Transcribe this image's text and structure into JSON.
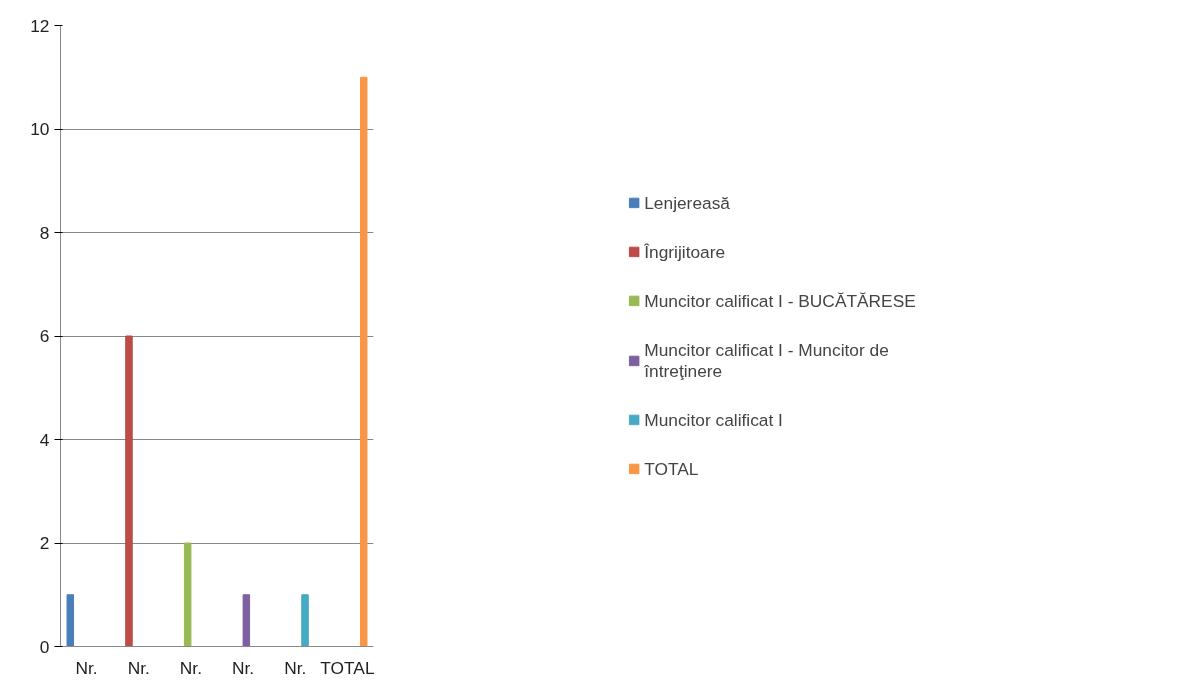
{
  "chart_data": {
    "type": "bar",
    "categories": [
      "Nr.",
      "Nr.",
      "Nr.",
      "Nr.",
      "Nr.",
      "TOTAL"
    ],
    "series": [
      {
        "name": "Lenjereasă",
        "color": "#4a7ebb",
        "values": [
          1,
          null,
          null,
          null,
          null,
          null
        ]
      },
      {
        "name": "Îngrijitoare",
        "color": "#be4b48",
        "values": [
          null,
          6,
          null,
          null,
          null,
          null
        ]
      },
      {
        "name": "Muncitor calificat I - BUCĂTĂRESE",
        "color": "#98b954",
        "values": [
          null,
          null,
          2,
          null,
          null,
          null
        ]
      },
      {
        "name": "Muncitor calificat I - Muncitor de întreţinere",
        "color": "#7d60a0",
        "values": [
          null,
          null,
          null,
          1,
          null,
          null
        ]
      },
      {
        "name": "Muncitor calificat I",
        "color": "#46aac5",
        "values": [
          null,
          null,
          null,
          null,
          1,
          null
        ]
      },
      {
        "name": "TOTAL",
        "color": "#f79646",
        "values": [
          null,
          null,
          null,
          null,
          null,
          11
        ]
      }
    ],
    "ylim": [
      0,
      12
    ],
    "yticks": [
      0,
      2,
      4,
      6,
      8,
      10,
      12
    ],
    "grid": "y",
    "legend": "right"
  }
}
